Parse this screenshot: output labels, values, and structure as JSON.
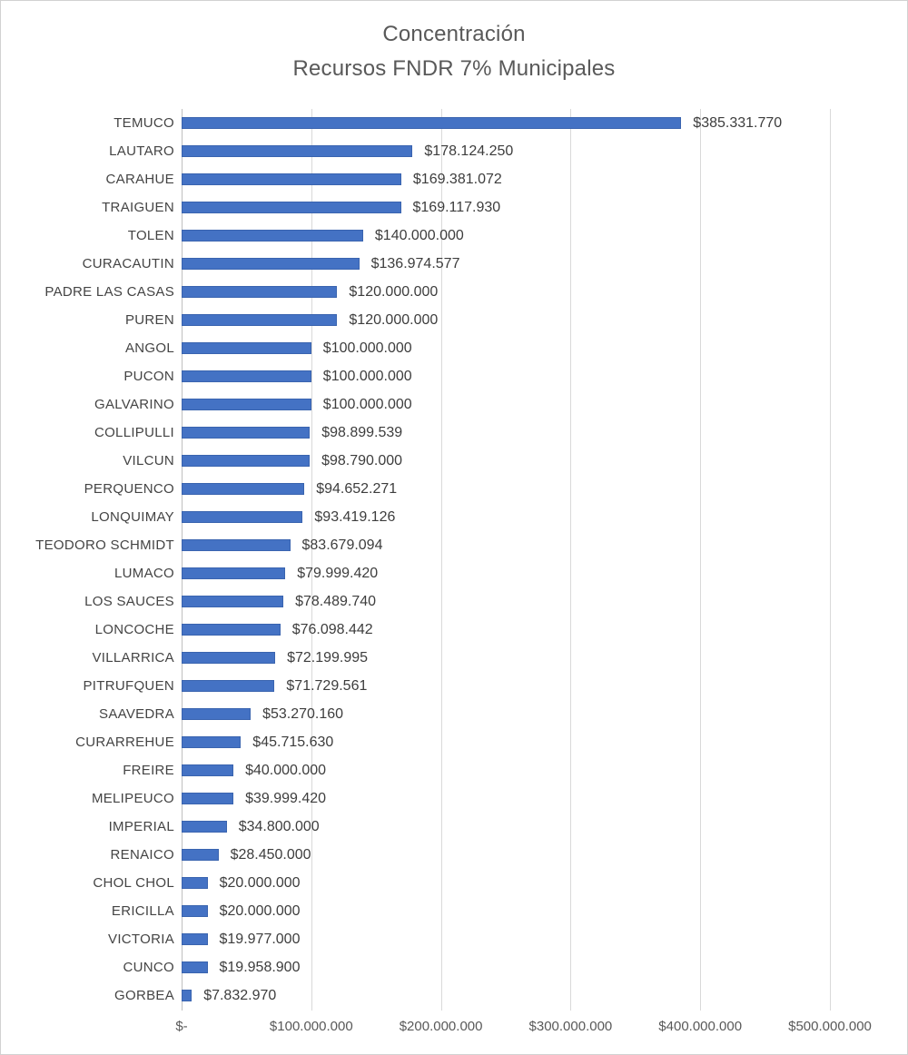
{
  "chart_data": {
    "type": "bar",
    "orientation": "horizontal",
    "title_line1": "Concentración",
    "title_line2": "Recursos FNDR 7% Municipales",
    "xlabel": "",
    "ylabel": "",
    "xlim": [
      0,
      500000000
    ],
    "grid": true,
    "legend": false,
    "x_ticks": [
      {
        "value": 0,
        "label": "$-"
      },
      {
        "value": 100000000,
        "label": "$100.000.000"
      },
      {
        "value": 200000000,
        "label": "$200.000.000"
      },
      {
        "value": 300000000,
        "label": "$300.000.000"
      },
      {
        "value": 400000000,
        "label": "$400.000.000"
      },
      {
        "value": 500000000,
        "label": "$500.000.000"
      }
    ],
    "categories": [
      "TEMUCO",
      "LAUTARO",
      "CARAHUE",
      "TRAIGUEN",
      "TOLEN",
      "CURACAUTIN",
      "PADRE LAS CASAS",
      "PUREN",
      "ANGOL",
      "PUCON",
      "GALVARINO",
      "COLLIPULLI",
      "VILCUN",
      "PERQUENCO",
      "LONQUIMAY",
      "TEODORO SCHMIDT",
      "LUMACO",
      "LOS SAUCES",
      "LONCOCHE",
      "VILLARRICA",
      "PITRUFQUEN",
      "SAAVEDRA",
      "CURARREHUE",
      "FREIRE",
      "MELIPEUCO",
      "IMPERIAL",
      "RENAICO",
      "CHOL CHOL",
      "ERICILLA",
      "VICTORIA",
      "CUNCO",
      "GORBEA"
    ],
    "values": [
      385331770,
      178124250,
      169381072,
      169117930,
      140000000,
      136974577,
      120000000,
      120000000,
      100000000,
      100000000,
      100000000,
      98899539,
      98790000,
      94652271,
      93419126,
      83679094,
      79999420,
      78489740,
      76098442,
      72199995,
      71729561,
      53270160,
      45715630,
      40000000,
      39999420,
      34800000,
      28450000,
      20000000,
      20000000,
      19977000,
      19958900,
      7832970
    ],
    "data_labels": [
      "$385.331.770",
      "$178.124.250",
      "$169.381.072",
      "$169.117.930",
      "$140.000.000",
      "$136.974.577",
      "$120.000.000",
      "$120.000.000",
      "$100.000.000",
      "$100.000.000",
      "$100.000.000",
      "$98.899.539",
      "$98.790.000",
      "$94.652.271",
      "$93.419.126",
      "$83.679.094",
      "$79.999.420",
      "$78.489.740",
      "$76.098.442",
      "$72.199.995",
      "$71.729.561",
      "$53.270.160",
      "$45.715.630",
      "$40.000.000",
      "$39.999.420",
      "$34.800.000",
      "$28.450.000",
      "$20.000.000",
      "$20.000.000",
      "$19.977.000",
      "$19.958.900",
      "$7.832.970"
    ]
  },
  "colors": {
    "bar": "#4472C4",
    "gridline": "#D9D9D9",
    "axis_line": "#BFBFBF",
    "category_text": "#444444",
    "value_text": "#3D3D3D",
    "tick_text": "#595959",
    "title_text": "#595959",
    "background": "#FFFFFF",
    "border": "#D2D2D2"
  }
}
